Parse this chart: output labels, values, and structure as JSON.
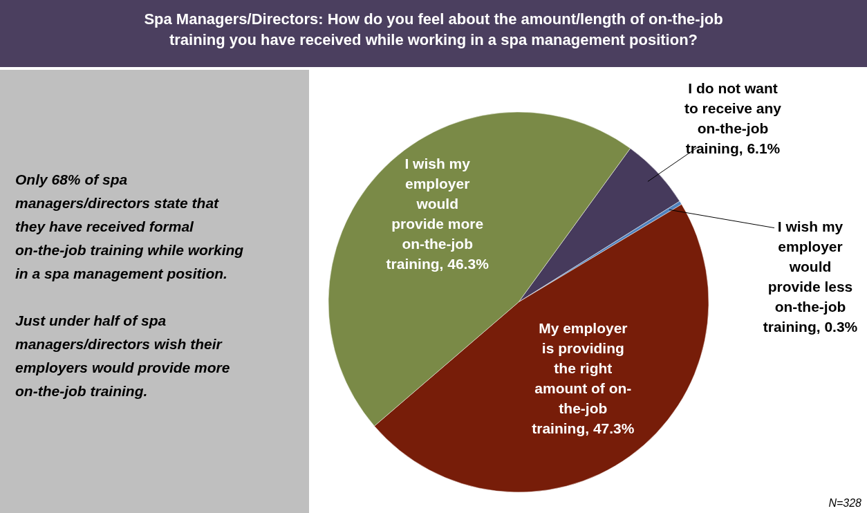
{
  "chart_data": {
    "type": "pie",
    "title": "Spa Managers/Directors: How do you feel about the amount/length of on-the-job training you have received while working in a spa management position?",
    "categories": [
      "I do not want to receive any on-the-job training",
      "I wish my employer would provide less on-the-job training",
      "My employer is providing the right amount of on-the-job training",
      "I wish my employer would provide more on-the-job training"
    ],
    "values": [
      6.1,
      0.3,
      47.3,
      46.3
    ],
    "colors": [
      "#463a5c",
      "#4f81bd",
      "#771d09",
      "#7a8a47"
    ],
    "value_labels": [
      "6.1%",
      "0.3%",
      "47.3%",
      "46.3%"
    ],
    "annotations": [
      "Only 68% of spa managers/directors state that they have received formal on-the-job training while working in a spa management position.",
      "Just under half of spa managers/directors wish their employers would provide more on-the-job training.",
      "N=328"
    ]
  }
}
